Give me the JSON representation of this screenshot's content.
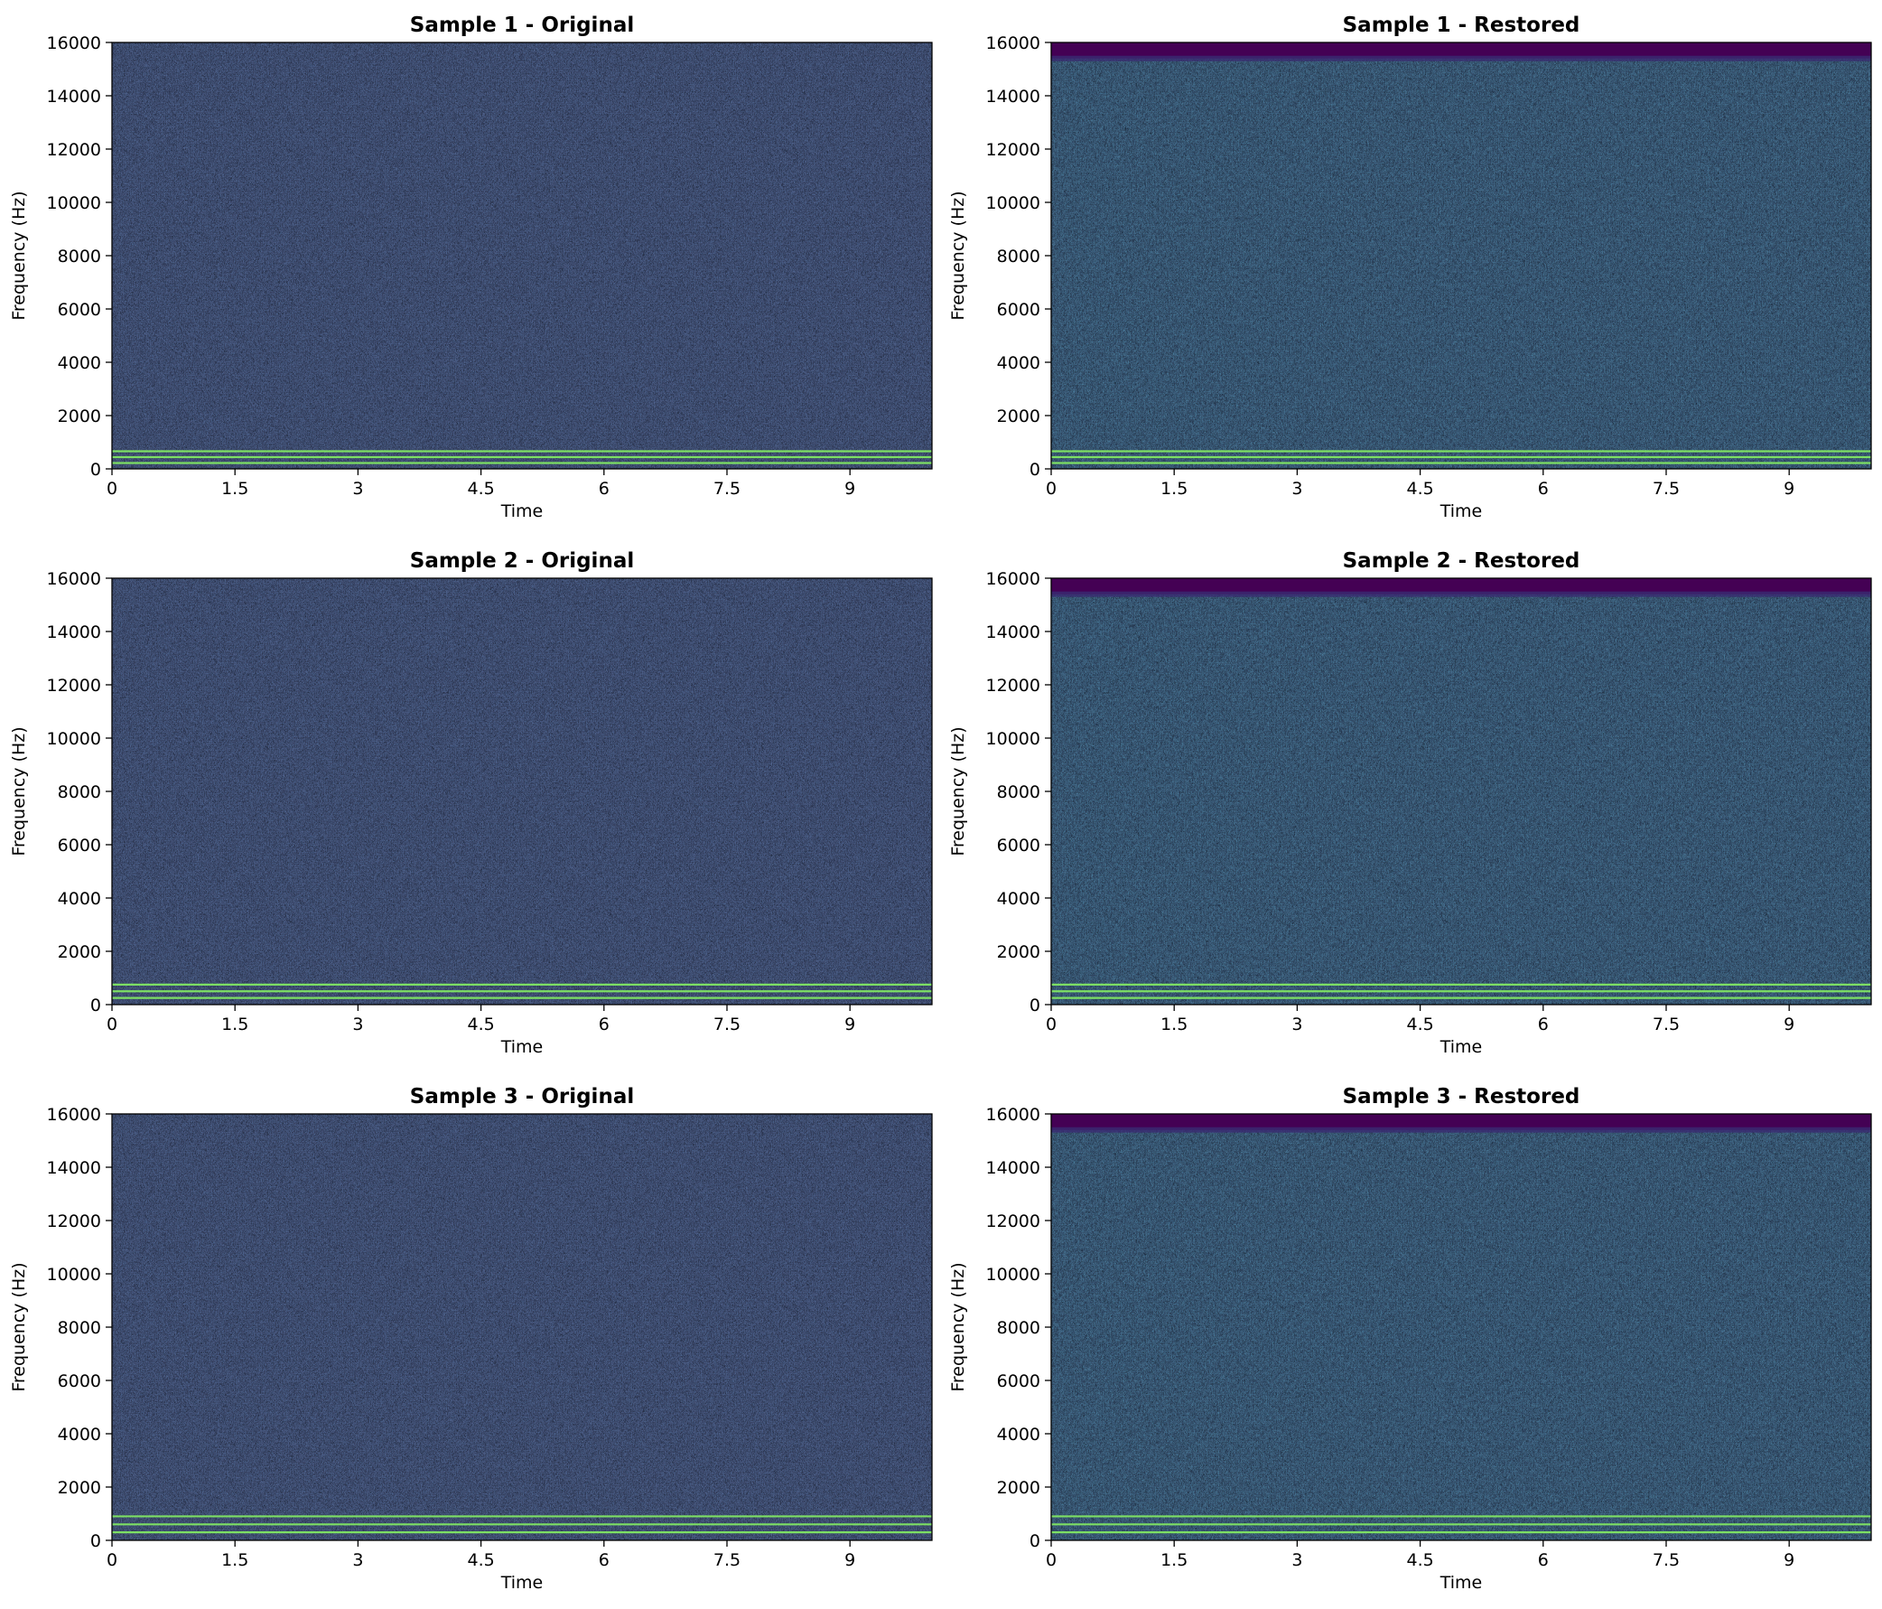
{
  "chart_data": [
    {
      "type": "heatmap",
      "title": "Sample 1 - Original",
      "xlabel": "Time",
      "ylabel": "Frequency (Hz)",
      "xlim": [
        0,
        10
      ],
      "ylim": [
        0,
        16000
      ],
      "xticks": [
        0,
        1.5,
        3,
        4.5,
        6,
        7.5,
        9
      ],
      "xtick_labels": [
        "0",
        "1.5",
        "3",
        "4.5",
        "6",
        "7.5",
        "9"
      ],
      "yticks": [
        0,
        2000,
        4000,
        6000,
        8000,
        10000,
        12000,
        14000,
        16000
      ],
      "ytick_labels": [
        "0",
        "2000",
        "4000",
        "6000",
        "8000",
        "10000",
        "12000",
        "14000",
        "16000"
      ],
      "colormap": "viridis",
      "base_color": "#2f5f8c",
      "harmonic_lines_hz": [
        220,
        440,
        660
      ],
      "highfreq_cutoff_hz": null
    },
    {
      "type": "heatmap",
      "title": "Sample 1 - Restored",
      "xlabel": "Time",
      "ylabel": "Frequency (Hz)",
      "xlim": [
        0,
        10
      ],
      "ylim": [
        0,
        16000
      ],
      "xticks": [
        0,
        1.5,
        3,
        4.5,
        6,
        7.5,
        9
      ],
      "xtick_labels": [
        "0",
        "1.5",
        "3",
        "4.5",
        "6",
        "7.5",
        "9"
      ],
      "yticks": [
        0,
        2000,
        4000,
        6000,
        8000,
        10000,
        12000,
        14000,
        16000
      ],
      "ytick_labels": [
        "0",
        "2000",
        "4000",
        "6000",
        "8000",
        "10000",
        "12000",
        "14000",
        "16000"
      ],
      "colormap": "viridis",
      "base_color": "#30558a",
      "harmonic_lines_hz": [
        220,
        440,
        660
      ],
      "highfreq_cutoff_hz": 15400
    },
    {
      "type": "heatmap",
      "title": "Sample 2 - Original",
      "xlabel": "Time",
      "ylabel": "Frequency (Hz)",
      "xlim": [
        0,
        10
      ],
      "ylim": [
        0,
        16000
      ],
      "xticks": [
        0,
        1.5,
        3,
        4.5,
        6,
        7.5,
        9
      ],
      "xtick_labels": [
        "0",
        "1.5",
        "3",
        "4.5",
        "6",
        "7.5",
        "9"
      ],
      "yticks": [
        0,
        2000,
        4000,
        6000,
        8000,
        10000,
        12000,
        14000,
        16000
      ],
      "ytick_labels": [
        "0",
        "2000",
        "4000",
        "6000",
        "8000",
        "10000",
        "12000",
        "14000",
        "16000"
      ],
      "colormap": "viridis",
      "base_color": "#2f5f8c",
      "harmonic_lines_hz": [
        250,
        500,
        750
      ],
      "highfreq_cutoff_hz": null
    },
    {
      "type": "heatmap",
      "title": "Sample 2 - Restored",
      "xlabel": "Time",
      "ylabel": "Frequency (Hz)",
      "xlim": [
        0,
        10
      ],
      "ylim": [
        0,
        16000
      ],
      "xticks": [
        0,
        1.5,
        3,
        4.5,
        6,
        7.5,
        9
      ],
      "xtick_labels": [
        "0",
        "1.5",
        "3",
        "4.5",
        "6",
        "7.5",
        "9"
      ],
      "yticks": [
        0,
        2000,
        4000,
        6000,
        8000,
        10000,
        12000,
        14000,
        16000
      ],
      "ytick_labels": [
        "0",
        "2000",
        "4000",
        "6000",
        "8000",
        "10000",
        "12000",
        "14000",
        "16000"
      ],
      "colormap": "viridis",
      "base_color": "#30558a",
      "harmonic_lines_hz": [
        250,
        500,
        750
      ],
      "highfreq_cutoff_hz": 15400
    },
    {
      "type": "heatmap",
      "title": "Sample 3 - Original",
      "xlabel": "Time",
      "ylabel": "Frequency (Hz)",
      "xlim": [
        0,
        10
      ],
      "ylim": [
        0,
        16000
      ],
      "xticks": [
        0,
        1.5,
        3,
        4.5,
        6,
        7.5,
        9
      ],
      "xtick_labels": [
        "0",
        "1.5",
        "3",
        "4.5",
        "6",
        "7.5",
        "9"
      ],
      "yticks": [
        0,
        2000,
        4000,
        6000,
        8000,
        10000,
        12000,
        14000,
        16000
      ],
      "ytick_labels": [
        "0",
        "2000",
        "4000",
        "6000",
        "8000",
        "10000",
        "12000",
        "14000",
        "16000"
      ],
      "colormap": "viridis",
      "base_color": "#2f5f8c",
      "harmonic_lines_hz": [
        300,
        600,
        900
      ],
      "highfreq_cutoff_hz": null
    },
    {
      "type": "heatmap",
      "title": "Sample 3 - Restored",
      "xlabel": "Time",
      "ylabel": "Frequency (Hz)",
      "xlim": [
        0,
        10
      ],
      "ylim": [
        0,
        16000
      ],
      "xticks": [
        0,
        1.5,
        3,
        4.5,
        6,
        7.5,
        9
      ],
      "xtick_labels": [
        "0",
        "1.5",
        "3",
        "4.5",
        "6",
        "7.5",
        "9"
      ],
      "yticks": [
        0,
        2000,
        4000,
        6000,
        8000,
        10000,
        12000,
        14000,
        16000
      ],
      "ytick_labels": [
        "0",
        "2000",
        "4000",
        "6000",
        "8000",
        "10000",
        "12000",
        "14000",
        "16000"
      ],
      "colormap": "viridis",
      "base_color": "#30558a",
      "harmonic_lines_hz": [
        300,
        600,
        900
      ],
      "highfreq_cutoff_hz": 15400
    }
  ],
  "colors": {
    "harmonic_line": "#7ddf64",
    "cutoff_band": "#440154",
    "noise_dark": "#3b2f78",
    "noise_light": "#2a8a8c"
  }
}
